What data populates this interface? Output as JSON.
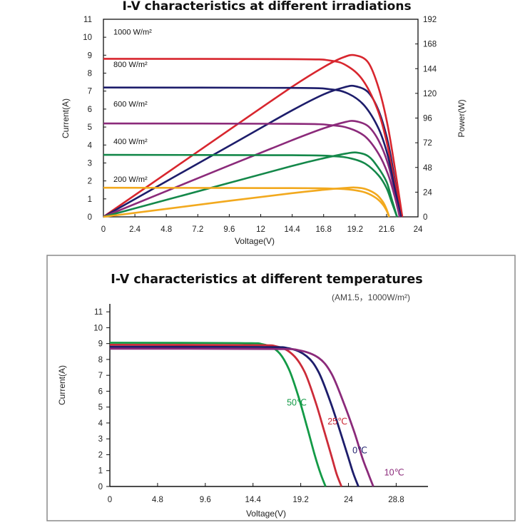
{
  "chart_data": [
    {
      "type": "line",
      "title": "I-V characteristics at different irradiations",
      "xlabel": "Voltage(V)",
      "ylabel": "Current(A)",
      "y2label": "Power(W)",
      "xlim": [
        0,
        24
      ],
      "ylim": [
        0,
        11
      ],
      "y2lim": [
        0,
        192
      ],
      "x_ticks": [
        "0",
        "2.4",
        "4.8",
        "7.2",
        "9.6",
        "12",
        "14.4",
        "16.8",
        "19.2",
        "21.6",
        "24"
      ],
      "y_ticks": [
        "0",
        "1",
        "2",
        "3",
        "4",
        "5",
        "6",
        "7",
        "8",
        "9",
        "10",
        "11"
      ],
      "y2_ticks": [
        "0",
        "24",
        "48",
        "72",
        "96",
        "120",
        "144",
        "168",
        "192"
      ],
      "grid": false,
      "series": [
        {
          "name": "1000 W/m²",
          "label_current": 10.3,
          "color": "#d8262e",
          "iv": [
            [
              0,
              8.8
            ],
            [
              14.4,
              8.78
            ],
            [
              17.3,
              8.7
            ],
            [
              18.6,
              8.4
            ],
            [
              19.8,
              7.6
            ],
            [
              20.9,
              6.0
            ],
            [
              21.6,
              4.2
            ],
            [
              22.2,
              2.0
            ],
            [
              22.8,
              0
            ]
          ],
          "power": [
            [
              0,
              0
            ],
            [
              9.6,
              84.5
            ],
            [
              14.4,
              126.4
            ],
            [
              16.8,
              145.5
            ],
            [
              18.3,
              155
            ],
            [
              19.2,
              157
            ],
            [
              20.2,
              150
            ],
            [
              21.0,
              125
            ],
            [
              21.7,
              88
            ],
            [
              22.3,
              42
            ],
            [
              22.8,
              0
            ]
          ]
        },
        {
          "name": "800 W/m²",
          "label_current": 8.5,
          "color": "#1d1d6b",
          "iv": [
            [
              0,
              7.2
            ],
            [
              14.4,
              7.18
            ],
            [
              17.3,
              7.1
            ],
            [
              18.7,
              6.85
            ],
            [
              19.9,
              6.2
            ],
            [
              21.0,
              4.9
            ],
            [
              21.7,
              3.4
            ],
            [
              22.2,
              1.7
            ],
            [
              22.7,
              0
            ]
          ],
          "power": [
            [
              0,
              0
            ],
            [
              9.6,
              69
            ],
            [
              14.4,
              103.5
            ],
            [
              16.8,
              119
            ],
            [
              18.4,
              126
            ],
            [
              19.2,
              127
            ],
            [
              20.2,
              121
            ],
            [
              21.0,
              103
            ],
            [
              21.7,
              73
            ],
            [
              22.2,
              38
            ],
            [
              22.7,
              0
            ]
          ]
        },
        {
          "name": "600 W/m²",
          "label_current": 6.3,
          "color": "#8b2a7a",
          "iv": [
            [
              0,
              5.2
            ],
            [
              14.4,
              5.18
            ],
            [
              17.4,
              5.1
            ],
            [
              18.8,
              4.92
            ],
            [
              20.0,
              4.45
            ],
            [
              21.0,
              3.5
            ],
            [
              21.7,
              2.4
            ],
            [
              22.2,
              1.2
            ],
            [
              22.6,
              0
            ]
          ],
          "power": [
            [
              0,
              0
            ],
            [
              9.6,
              50
            ],
            [
              14.4,
              74.5
            ],
            [
              16.8,
              86
            ],
            [
              18.4,
              92
            ],
            [
              19.2,
              93
            ],
            [
              20.2,
              88
            ],
            [
              21.0,
              74
            ],
            [
              21.7,
              52
            ],
            [
              22.2,
              26
            ],
            [
              22.6,
              0
            ]
          ]
        },
        {
          "name": "400 W/m²",
          "label_current": 4.2,
          "color": "#14884a",
          "iv": [
            [
              0,
              3.45
            ],
            [
              14.4,
              3.43
            ],
            [
              17.5,
              3.38
            ],
            [
              18.9,
              3.25
            ],
            [
              20.0,
              2.95
            ],
            [
              21.0,
              2.3
            ],
            [
              21.6,
              1.6
            ],
            [
              22.0,
              0.8
            ],
            [
              22.4,
              0
            ]
          ],
          "power": [
            [
              0,
              0
            ],
            [
              9.6,
              33
            ],
            [
              14.4,
              49.5
            ],
            [
              16.8,
              57
            ],
            [
              18.5,
              61.5
            ],
            [
              19.3,
              62.5
            ],
            [
              20.2,
              59
            ],
            [
              20.9,
              49
            ],
            [
              21.6,
              34
            ],
            [
              22.0,
              17
            ],
            [
              22.4,
              0
            ]
          ]
        },
        {
          "name": "200 W/m²",
          "label_current": 2.1,
          "color": "#f2a91e",
          "iv": [
            [
              0,
              1.62
            ],
            [
              14.4,
              1.6
            ],
            [
              17.6,
              1.57
            ],
            [
              19.0,
              1.5
            ],
            [
              20.0,
              1.35
            ],
            [
              20.8,
              1.05
            ],
            [
              21.3,
              0.7
            ],
            [
              21.6,
              0.35
            ],
            [
              21.8,
              0
            ]
          ],
          "power": [
            [
              0,
              0
            ],
            [
              9.6,
              15.5
            ],
            [
              14.4,
              23
            ],
            [
              16.8,
              26.3
            ],
            [
              18.4,
              28
            ],
            [
              19.2,
              28.5
            ],
            [
              20.0,
              27
            ],
            [
              20.8,
              22
            ],
            [
              21.3,
              15
            ],
            [
              21.6,
              7.5
            ],
            [
              21.8,
              0
            ]
          ]
        }
      ]
    },
    {
      "type": "line",
      "title": "I-V characteristics at different temperatures",
      "subtitle": "(AM1.5，1000W/m²)",
      "xlabel": "Voltage(V)",
      "ylabel": "Current(A)",
      "xlim": [
        0,
        32
      ],
      "ylim": [
        0,
        11.5
      ],
      "x_ticks": [
        "0",
        "4.8",
        "9.6",
        "14.4",
        "19.2",
        "24",
        "28.8"
      ],
      "y_ticks": [
        "0",
        "1",
        "2",
        "3",
        "4",
        "5",
        "6",
        "7",
        "8",
        "9",
        "10",
        "11"
      ],
      "grid": false,
      "series": [
        {
          "name": "50℃",
          "color": "#139a46",
          "label_at": [
            17.8,
            5.1
          ],
          "points": [
            [
              0,
              9.05
            ],
            [
              13,
              9.03
            ],
            [
              15.4,
              8.95
            ],
            [
              16.9,
              8.5
            ],
            [
              18.0,
              7.4
            ],
            [
              19.0,
              5.6
            ],
            [
              19.9,
              3.6
            ],
            [
              20.6,
              2.0
            ],
            [
              21.2,
              0.8
            ],
            [
              21.7,
              0
            ]
          ]
        },
        {
          "name": "25℃",
          "color": "#cc2b38",
          "label_at": [
            21.9,
            3.9
          ],
          "points": [
            [
              0,
              8.92
            ],
            [
              14,
              8.9
            ],
            [
              16.8,
              8.82
            ],
            [
              18.4,
              8.3
            ],
            [
              19.6,
              7.2
            ],
            [
              20.7,
              5.3
            ],
            [
              21.6,
              3.4
            ],
            [
              22.3,
              1.9
            ],
            [
              22.8,
              0.8
            ],
            [
              23.3,
              0
            ]
          ]
        },
        {
          "name": "0℃",
          "color": "#1d1d6b",
          "label_at": [
            24.4,
            2.1
          ],
          "points": [
            [
              0,
              8.8
            ],
            [
              15,
              8.78
            ],
            [
              18.0,
              8.7
            ],
            [
              19.8,
              8.2
            ],
            [
              21.0,
              7.2
            ],
            [
              22.2,
              5.3
            ],
            [
              23.2,
              3.4
            ],
            [
              24.0,
              1.8
            ],
            [
              24.5,
              0.8
            ],
            [
              25.0,
              0
            ]
          ]
        },
        {
          "name": "10℃",
          "color": "#8b2a7a",
          "label_at": [
            27.6,
            0.7
          ],
          "points": [
            [
              0,
              8.68
            ],
            [
              16,
              8.66
            ],
            [
              19.0,
              8.58
            ],
            [
              21.0,
              8.1
            ],
            [
              22.3,
              7.1
            ],
            [
              23.5,
              5.3
            ],
            [
              24.6,
              3.4
            ],
            [
              25.4,
              1.8
            ],
            [
              26.0,
              0.8
            ],
            [
              26.5,
              0
            ]
          ]
        }
      ]
    }
  ]
}
